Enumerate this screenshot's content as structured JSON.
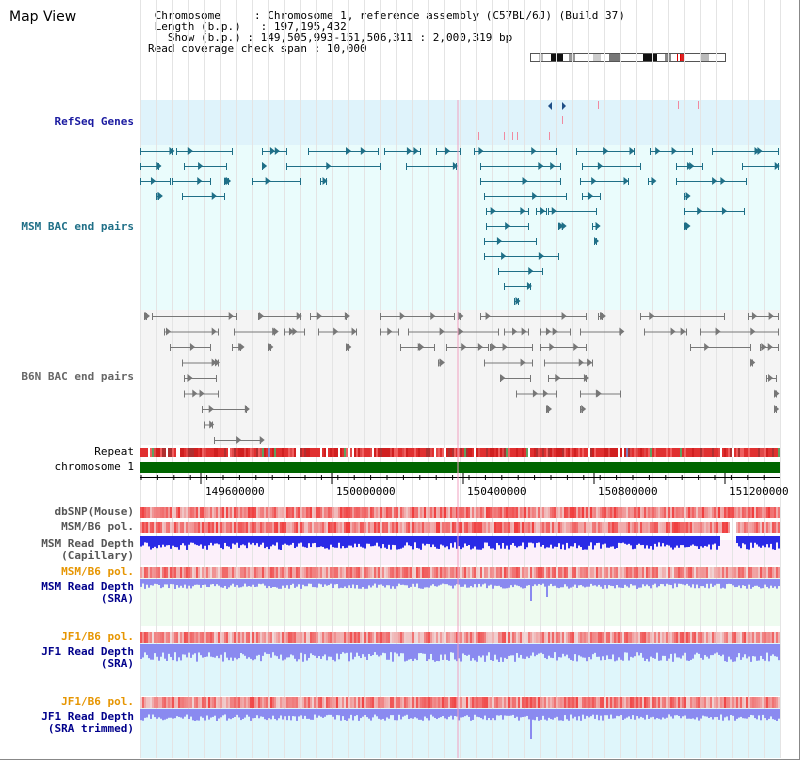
{
  "header": {
    "title": "Map View",
    "chromosome_label": "Chromosome",
    "chromosome_value": "Chromosome 1, reference assembly (C57BL/6J) (Build 37)",
    "length_label": "Length (b.p.)",
    "length_value": "197,195,432",
    "show_label": "Show (b.p.)",
    "show_value": "149,505,993-151,506,311 : 2,000,319 bp",
    "span_label": "Read coverage check span",
    "span_value": "10,000"
  },
  "tracks": {
    "refseq": "RefSeq Genes",
    "msm_bac": "MSM BAC end pairs",
    "b6n_bac": "B6N BAC end pairs",
    "repeat": "Repeat",
    "chromosome": "chromosome 1",
    "dbsnp": "dbSNP(Mouse)",
    "msm_b6_pol_1": "MSM/B6 pol.",
    "msm_depth_cap_1": "MSM Read Depth",
    "msm_depth_cap_2": "(Capillary)",
    "msm_b6_pol_2": "MSM/B6 pol.",
    "msm_depth_sra_1": "MSM Read Depth",
    "msm_depth_sra_2": "(SRA)",
    "jf1_b6_pol_1": "JF1/B6 pol.",
    "jf1_depth_sra_1": "JF1 Read Depth",
    "jf1_depth_sra_2": "(SRA)",
    "jf1_b6_pol_2": "JF1/B6 pol.",
    "jf1_depth_trim_1": "JF1 Read Depth",
    "jf1_depth_trim_2": "(SRA trimmed)"
  },
  "axis": {
    "ticks": [
      "149600000",
      "150000000",
      "150400000",
      "150800000",
      "151200000"
    ]
  },
  "colors": {
    "refseq_bg": "#dff3fb",
    "msm_bac_bg": "#eafcfc",
    "msm_bac_feature": "#1f6f87",
    "b6n_bac_bg": "#f4f4f4",
    "b6n_bac_feature": "#777777",
    "chromosome_bar": "#006600",
    "snp_red": "#f05050",
    "depth_blue": "#2a2ae6",
    "depth_light": "#8a8af0",
    "label_blue": "#00008b",
    "label_orange": "#e69500"
  }
}
